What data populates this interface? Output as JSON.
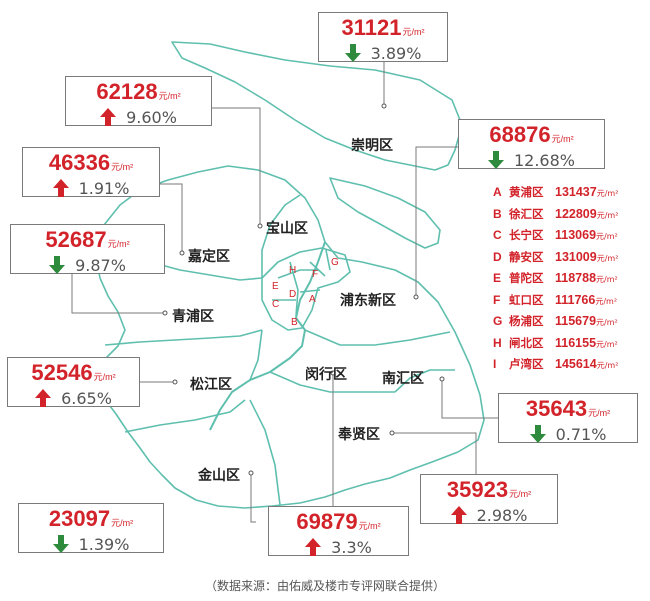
{
  "unit": "元/m²",
  "colors": {
    "up": "#d3232a",
    "down": "#2e8b3d",
    "boundary": "#5fbfae",
    "price": "#d3232a"
  },
  "districts": [
    {
      "key": "chongming",
      "name": "崇明区",
      "price": "31121",
      "change": "3.89%",
      "direction": "down"
    },
    {
      "key": "baoshan",
      "name": "宝山区",
      "price": "62128",
      "change": "9.60%",
      "direction": "up"
    },
    {
      "key": "pudong",
      "name": "浦东新区",
      "price": "68876",
      "change": "12.68%",
      "direction": "down"
    },
    {
      "key": "jiading",
      "name": "嘉定区",
      "price": "46336",
      "change": "1.91%",
      "direction": "up"
    },
    {
      "key": "qingpu",
      "name": "青浦区",
      "price": "52687",
      "change": "9.87%",
      "direction": "down"
    },
    {
      "key": "songjiang",
      "name": "松江区",
      "price": "52546",
      "change": "6.65%",
      "direction": "up"
    },
    {
      "key": "nanhui",
      "name": "南汇区",
      "price": "35643",
      "change": "0.71%",
      "direction": "down"
    },
    {
      "key": "fengxian",
      "name": "奉贤区",
      "price": "35923",
      "change": "2.98%",
      "direction": "up"
    },
    {
      "key": "jinshan",
      "name": "金山区",
      "price": "23097",
      "change": "1.39%",
      "direction": "down"
    },
    {
      "key": "minhang",
      "name": "闵行区",
      "price": "69879",
      "change": "3.3%",
      "direction": "up"
    }
  ],
  "urban": [
    {
      "letter": "A",
      "name": "黄浦区",
      "price": "131437"
    },
    {
      "letter": "B",
      "name": "徐汇区",
      "price": "122809"
    },
    {
      "letter": "C",
      "name": "长宁区",
      "price": "113069"
    },
    {
      "letter": "D",
      "name": "静安区",
      "price": "131009"
    },
    {
      "letter": "E",
      "name": "普陀区",
      "price": "118788"
    },
    {
      "letter": "F",
      "name": "虹口区",
      "price": "111766"
    },
    {
      "letter": "G",
      "name": "杨浦区",
      "price": "115679"
    },
    {
      "letter": "H",
      "name": "闸北区",
      "price": "116155"
    },
    {
      "letter": "I",
      "name": "卢湾区",
      "price": "145614"
    }
  ],
  "source": "（数据来源：由佑威及楼市专评网联合提供）"
}
